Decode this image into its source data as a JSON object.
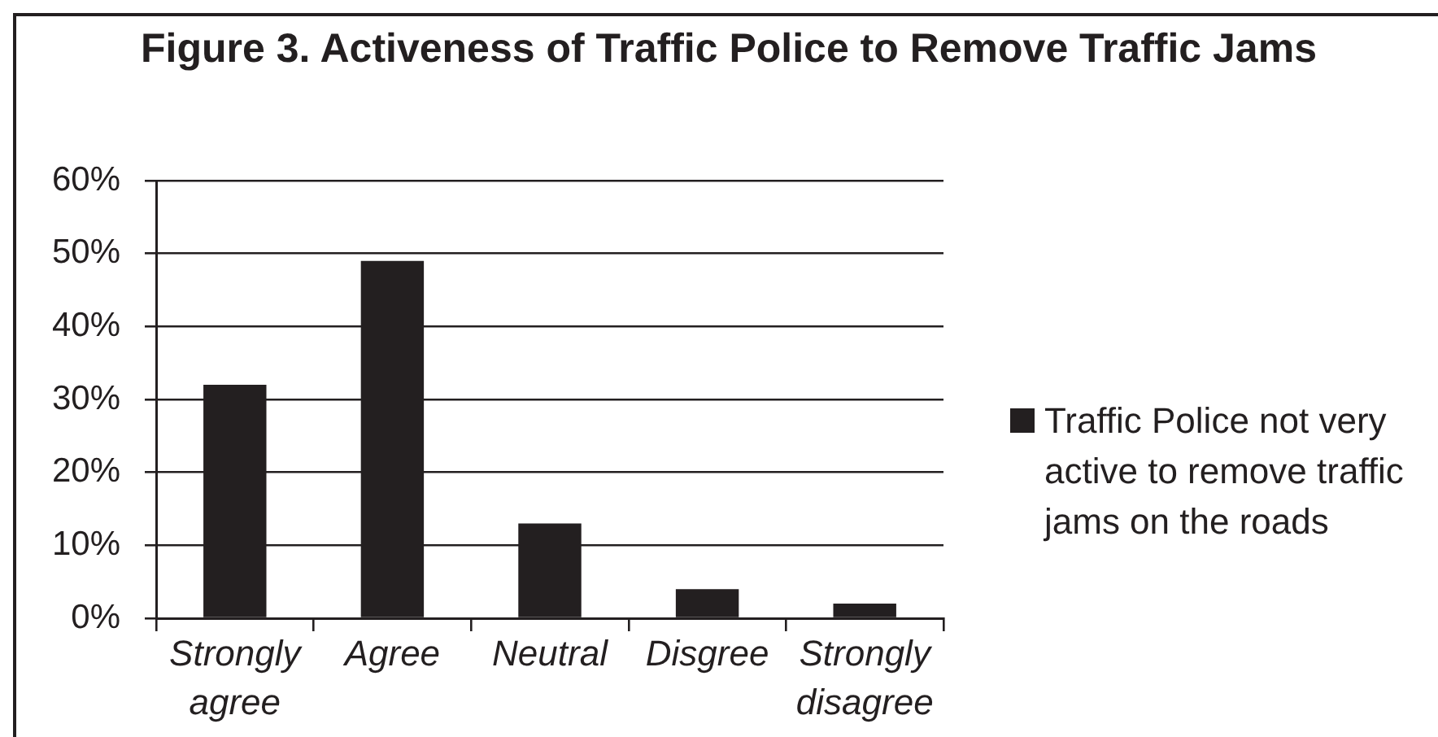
{
  "chart_data": {
    "type": "bar",
    "title": "Figure 3. Activeness of Traffic Police to Remove Traffic Jams",
    "categories": [
      "Strongly agree",
      "Agree",
      "Neutral",
      "Disgree",
      "Strongly disagree"
    ],
    "series": [
      {
        "name": "Traffic Police not very active to remove traffic jams on the roads",
        "color": "#231f20",
        "values": [
          32,
          49,
          13,
          4,
          2
        ]
      }
    ],
    "ylim": [
      0,
      60
    ],
    "yticks": [
      {
        "value": 0,
        "label": "0%"
      },
      {
        "value": 10,
        "label": "10%"
      },
      {
        "value": 20,
        "label": "20%"
      },
      {
        "value": 30,
        "label": "30%"
      },
      {
        "value": 40,
        "label": "40%"
      },
      {
        "value": 50,
        "label": "50%"
      },
      {
        "value": 60,
        "label": "60%"
      }
    ],
    "grid": "y",
    "legend": "right"
  }
}
